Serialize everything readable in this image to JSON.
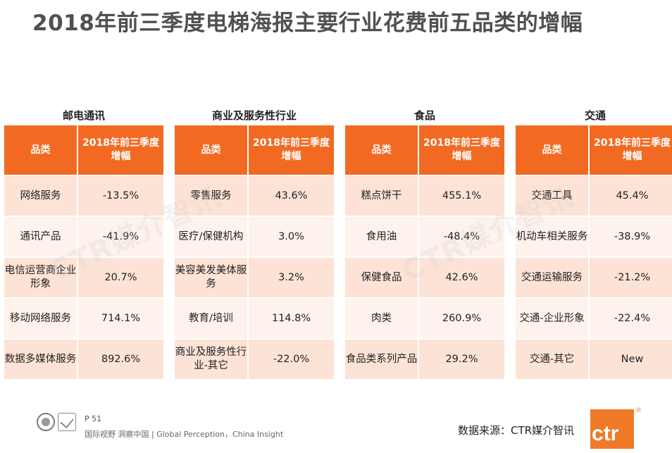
{
  "title": "2018年前三季度电梯海报主要行业花费前五品类的增幅",
  "table_header": {
    "category": "品类",
    "growth": "2018年前三季度增幅"
  },
  "panels": [
    {
      "heading": "邮电通讯",
      "rows": [
        {
          "category": "网络服务",
          "growth": "-13.5%"
        },
        {
          "category": "通讯产品",
          "growth": "-41.9%"
        },
        {
          "category": "电信运营商企业形象",
          "growth": "20.7%"
        },
        {
          "category": "移动网络服务",
          "growth": "714.1%"
        },
        {
          "category": "数据多媒体服务",
          "growth": "892.6%"
        }
      ]
    },
    {
      "heading": "商业及服务性行业",
      "rows": [
        {
          "category": "零售服务",
          "growth": "43.6%"
        },
        {
          "category": "医疗/保健机构",
          "growth": "3.0%"
        },
        {
          "category": "美容美发美体服务",
          "growth": "3.2%"
        },
        {
          "category": "教育/培训",
          "growth": "114.8%"
        },
        {
          "category": "商业及服务性行业-其它",
          "growth": "-22.0%"
        }
      ]
    },
    {
      "heading": "食品",
      "rows": [
        {
          "category": "糕点饼干",
          "growth": "455.1%"
        },
        {
          "category": "食用油",
          "growth": "-48.4%"
        },
        {
          "category": "保健食品",
          "growth": "42.6%"
        },
        {
          "category": "肉类",
          "growth": "260.9%"
        },
        {
          "category": "食品类系列产品",
          "growth": "29.2%"
        }
      ]
    },
    {
      "heading": "交通",
      "rows": [
        {
          "category": "交通工具",
          "growth": "45.4%"
        },
        {
          "category": "机动车相关服务",
          "growth": "-38.9%"
        },
        {
          "category": "交通运输服务",
          "growth": "-21.2%"
        },
        {
          "category": "交通-企业形象",
          "growth": "-22.4%"
        },
        {
          "category": "交通-其它",
          "growth": "New"
        }
      ]
    }
  ],
  "footer": {
    "page": "P 51",
    "slogan": "国际视野  洞察中国 |  Global Perception，China Insight",
    "source": "数据来源：CTR媒介智讯",
    "logo_text": "ctr",
    "logo_mark": "®",
    "watermark": "CTR媒介智讯"
  },
  "colors": {
    "header": "#f26a22",
    "row_dark": "#fde3d6",
    "row_light": "#fef2ec",
    "title": "#505050",
    "logo": "#f07a28"
  }
}
